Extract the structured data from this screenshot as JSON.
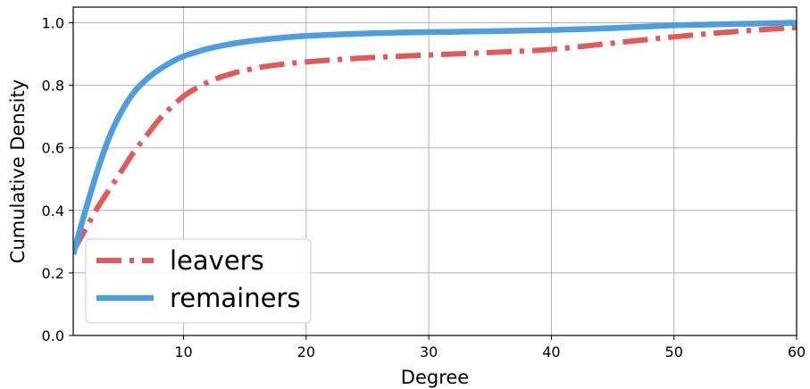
{
  "chart_data": {
    "type": "line",
    "xlabel": "Degree",
    "ylabel": "Cumulative Density",
    "xlim": [
      1,
      60
    ],
    "ylim": [
      0,
      1.05
    ],
    "xticks": [
      10,
      20,
      30,
      40,
      50,
      60
    ],
    "yticks": [
      0.0,
      0.2,
      0.4,
      0.6,
      0.8,
      1.0
    ],
    "xtick_labels": [
      "10",
      "20",
      "30",
      "40",
      "50",
      "60"
    ],
    "ytick_labels": [
      "0.0",
      "0.2",
      "0.4",
      "0.6",
      "0.8",
      "1.0"
    ],
    "grid": true,
    "legend_placement": "lower-left",
    "series": [
      {
        "name": "leavers",
        "color": "#e05a5a",
        "linestyle": "dashdot",
        "x": [
          1,
          2,
          3,
          4,
          5,
          6,
          7,
          8,
          9,
          10,
          11,
          12,
          13,
          14,
          15,
          17,
          20,
          25,
          30,
          35,
          40,
          45,
          50,
          55,
          60
        ],
        "y": [
          0.27,
          0.34,
          0.41,
          0.47,
          0.53,
          0.59,
          0.64,
          0.69,
          0.73,
          0.765,
          0.79,
          0.81,
          0.826,
          0.838,
          0.848,
          0.862,
          0.875,
          0.888,
          0.897,
          0.905,
          0.915,
          0.935,
          0.955,
          0.972,
          0.985
        ]
      },
      {
        "name": "remainers",
        "color": "#4d9de0",
        "linestyle": "solid",
        "x": [
          1,
          2,
          3,
          4,
          5,
          6,
          7,
          8,
          9,
          10,
          12,
          14,
          16,
          18,
          20,
          25,
          30,
          35,
          40,
          45,
          50,
          55,
          60
        ],
        "y": [
          0.26,
          0.4,
          0.53,
          0.64,
          0.72,
          0.78,
          0.82,
          0.85,
          0.874,
          0.893,
          0.917,
          0.933,
          0.944,
          0.952,
          0.958,
          0.966,
          0.97,
          0.973,
          0.977,
          0.983,
          0.992,
          0.996,
          1.0
        ]
      }
    ]
  }
}
